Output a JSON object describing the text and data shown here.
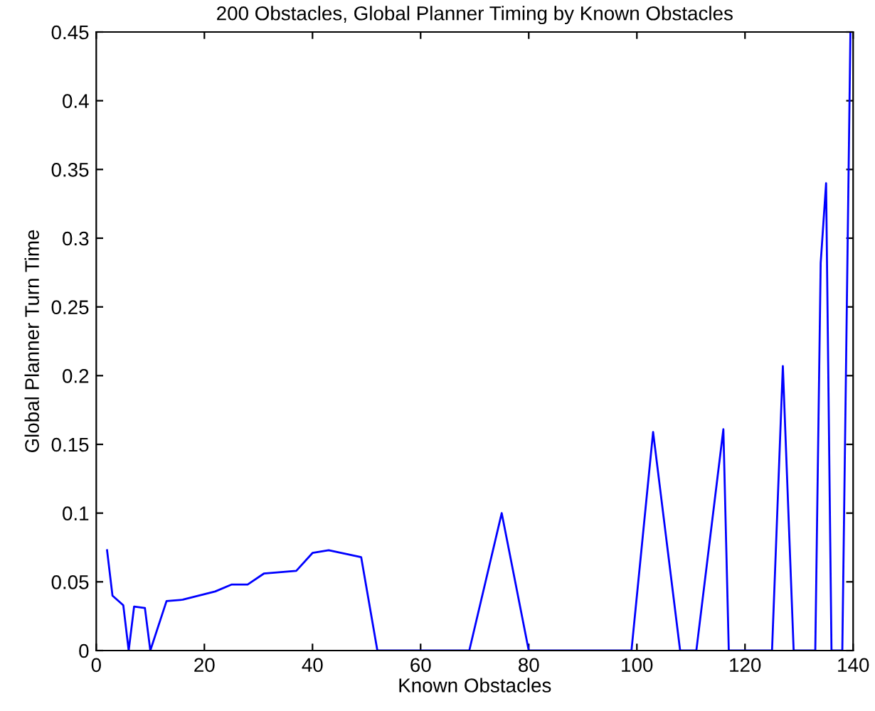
{
  "chart_data": {
    "type": "line",
    "title": "200 Obstacles, Global Planner Timing by Known Obstacles",
    "xlabel": "Known Obstacles",
    "ylabel": "Global Planner Turn Time",
    "series": [
      {
        "color": "#0000ff",
        "x": [
          2,
          3,
          5,
          6,
          7,
          9,
          10,
          13,
          16,
          22,
          25,
          28,
          31,
          37,
          40,
          43,
          49,
          52,
          69,
          75,
          80,
          99,
          103,
          108,
          111,
          116,
          117,
          125,
          127,
          129,
          133,
          134,
          135,
          136,
          138,
          139,
          139.5
        ],
        "values": [
          0.073,
          0.04,
          0.033,
          0,
          0.032,
          0.031,
          0,
          0.036,
          0.037,
          0.043,
          0.048,
          0.048,
          0.056,
          0.058,
          0.071,
          0.073,
          0.068,
          0,
          0,
          0.1,
          0,
          0,
          0.159,
          0,
          0,
          0.161,
          0,
          0,
          0.207,
          0,
          0,
          0.282,
          0.34,
          0,
          0,
          0.3,
          0.45
        ]
      }
    ],
    "xlim": [
      0,
      140
    ],
    "xticks": [
      0,
      20,
      40,
      60,
      80,
      100,
      120,
      140
    ],
    "ylim": [
      0,
      0.45
    ],
    "yticks": [
      0,
      0.05,
      0.1,
      0.15,
      0.2,
      0.25,
      0.3,
      0.35,
      0.4,
      0.45
    ],
    "grid": false,
    "legend": false
  }
}
